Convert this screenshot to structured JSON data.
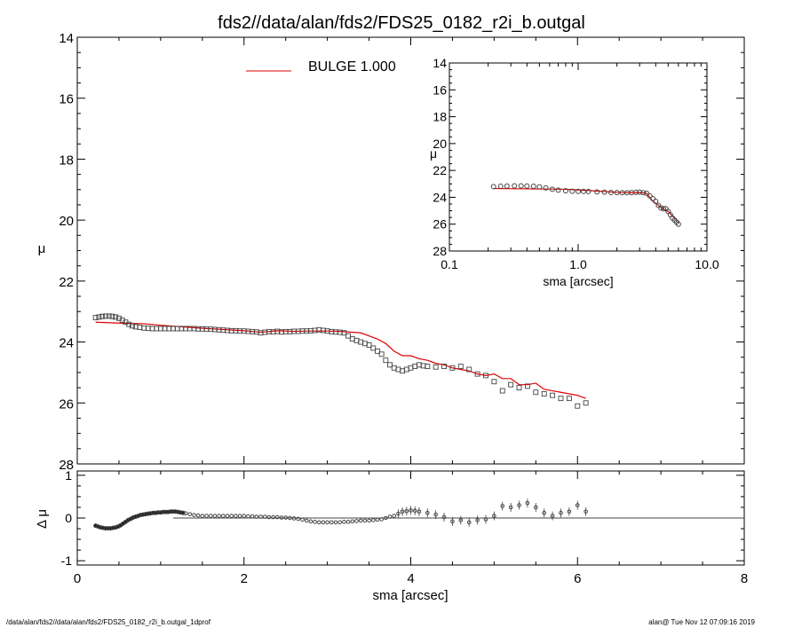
{
  "title": "fds2//data/alan/fds2/FDS25_0182_r2i_b.outgal",
  "footer_left": "/data/alan/fds2//data/alan/fds2/FDS25_0182_r2i_b.outgal_1dprof",
  "footer_right": "alan@  Tue Nov 12 07:09:16 2019",
  "colors": {
    "model": "#dd0000",
    "data": "#444444",
    "axis": "#000000"
  },
  "chart_data": [
    {
      "type": "scatter",
      "panel": "main",
      "ylabel": "μ",
      "xlim": [
        0,
        8
      ],
      "ylim": [
        28,
        14
      ],
      "y_inverted": true,
      "yticks": [
        "14",
        "16",
        "18",
        "20",
        "22",
        "24",
        "26",
        "28"
      ],
      "legend": {
        "label": "BULGE  1.000",
        "placement": "top-left"
      },
      "series": [
        {
          "name": "data",
          "marker": "square",
          "x": [
            0.22,
            0.26,
            0.3,
            0.34,
            0.38,
            0.42,
            0.46,
            0.5,
            0.54,
            0.58,
            0.62,
            0.66,
            0.7,
            0.75,
            0.8,
            0.85,
            0.9,
            0.95,
            1.0,
            1.05,
            1.1,
            1.15,
            1.2,
            1.25,
            1.3,
            1.35,
            1.4,
            1.45,
            1.5,
            1.55,
            1.6,
            1.65,
            1.7,
            1.75,
            1.8,
            1.85,
            1.9,
            1.95,
            2.0,
            2.05,
            2.1,
            2.15,
            2.2,
            2.25,
            2.3,
            2.35,
            2.4,
            2.45,
            2.5,
            2.55,
            2.6,
            2.65,
            2.7,
            2.75,
            2.8,
            2.85,
            2.9,
            2.95,
            3.0,
            3.05,
            3.1,
            3.15,
            3.2,
            3.25,
            3.3,
            3.35,
            3.4,
            3.45,
            3.5,
            3.55,
            3.6,
            3.65,
            3.7,
            3.75,
            3.8,
            3.85,
            3.9,
            3.95,
            4.0,
            4.05,
            4.1,
            4.15,
            4.2,
            4.3,
            4.4,
            4.5,
            4.6,
            4.7,
            4.8,
            4.9,
            5.0,
            5.1,
            5.2,
            5.3,
            5.4,
            5.5,
            5.6,
            5.7,
            5.8,
            5.9,
            6.0,
            6.1
          ],
          "y": [
            23.2,
            23.18,
            23.16,
            23.15,
            23.15,
            23.16,
            23.18,
            23.22,
            23.28,
            23.35,
            23.42,
            23.47,
            23.5,
            23.52,
            23.54,
            23.55,
            23.56,
            23.56,
            23.56,
            23.56,
            23.56,
            23.56,
            23.56,
            23.56,
            23.56,
            23.56,
            23.56,
            23.57,
            23.57,
            23.58,
            23.58,
            23.59,
            23.6,
            23.61,
            23.62,
            23.63,
            23.63,
            23.64,
            23.64,
            23.65,
            23.66,
            23.67,
            23.7,
            23.68,
            23.66,
            23.67,
            23.65,
            23.67,
            23.66,
            23.66,
            23.65,
            23.65,
            23.64,
            23.64,
            23.63,
            23.62,
            23.6,
            23.62,
            23.64,
            23.66,
            23.67,
            23.68,
            23.7,
            23.8,
            23.9,
            23.95,
            24.0,
            24.05,
            24.1,
            24.2,
            24.3,
            24.4,
            24.6,
            24.75,
            24.85,
            24.9,
            24.95,
            24.9,
            24.85,
            24.8,
            24.75,
            24.78,
            24.8,
            24.82,
            24.8,
            24.85,
            24.8,
            24.9,
            25.05,
            25.1,
            25.3,
            25.6,
            25.4,
            25.5,
            25.45,
            25.65,
            25.7,
            25.75,
            25.85,
            25.85,
            26.1,
            26.0
          ]
        },
        {
          "name": "BULGE  1.000",
          "line": true,
          "x": [
            0.22,
            0.5,
            0.8,
            1.0,
            1.5,
            2.0,
            2.2,
            2.4,
            2.6,
            2.8,
            3.0,
            3.2,
            3.4,
            3.6,
            3.7,
            3.8,
            3.9,
            4.0,
            4.1,
            4.2,
            4.3,
            4.4,
            4.5,
            4.6,
            4.7,
            4.8,
            4.9,
            5.0,
            5.1,
            5.2,
            5.3,
            5.4,
            5.5,
            5.6,
            5.7,
            5.8,
            5.9,
            6.0,
            6.1
          ],
          "y": [
            23.35,
            23.38,
            23.4,
            23.45,
            23.55,
            23.63,
            23.68,
            23.63,
            23.65,
            23.64,
            23.64,
            23.66,
            23.7,
            23.9,
            24.05,
            24.3,
            24.45,
            24.45,
            24.55,
            24.6,
            24.7,
            24.75,
            24.85,
            24.9,
            24.95,
            25.05,
            25.1,
            25.05,
            25.2,
            25.2,
            25.4,
            25.4,
            25.35,
            25.55,
            25.6,
            25.65,
            25.7,
            25.75,
            25.85
          ]
        }
      ]
    },
    {
      "type": "scatter",
      "panel": "inset",
      "ylabel": "μ",
      "xlabel": "sma [arcsec]",
      "x_scale": "log",
      "xlim": [
        0.1,
        10.0
      ],
      "xticks": [
        "0.1",
        "1.0",
        "10.0"
      ],
      "ylim": [
        28,
        14
      ],
      "y_inverted": true,
      "yticks": [
        "14",
        "16",
        "18",
        "20",
        "22",
        "24",
        "26",
        "28"
      ],
      "series": [
        {
          "name": "data",
          "marker": "circle",
          "x": [
            0.22,
            0.25,
            0.28,
            0.32,
            0.36,
            0.4,
            0.45,
            0.5,
            0.56,
            0.63,
            0.7,
            0.8,
            0.9,
            1.0,
            1.1,
            1.2,
            1.4,
            1.6,
            1.8,
            2.0,
            2.2,
            2.4,
            2.6,
            2.8,
            3.0,
            3.2,
            3.4,
            3.6,
            3.8,
            4.0,
            4.2,
            4.4,
            4.6,
            4.8,
            5.0,
            5.2,
            5.4,
            5.6,
            5.8,
            6.0
          ],
          "y": [
            23.2,
            23.18,
            23.16,
            23.15,
            23.15,
            23.16,
            23.18,
            23.22,
            23.3,
            23.4,
            23.47,
            23.52,
            23.55,
            23.56,
            23.56,
            23.57,
            23.6,
            23.62,
            23.64,
            23.65,
            23.66,
            23.66,
            23.65,
            23.63,
            23.62,
            23.66,
            23.7,
            23.9,
            24.1,
            24.3,
            24.6,
            24.8,
            24.85,
            24.85,
            25.05,
            25.3,
            25.55,
            25.7,
            25.85,
            26.0
          ]
        },
        {
          "name": "model",
          "line": true,
          "x": [
            0.22,
            0.5,
            0.8,
            1.0,
            1.5,
            2.0,
            2.5,
            3.0,
            3.4,
            3.8,
            4.2,
            4.6,
            5.0,
            5.4,
            5.8,
            6.1
          ],
          "y": [
            23.35,
            23.38,
            23.4,
            23.45,
            23.55,
            23.63,
            23.65,
            23.64,
            23.7,
            24.3,
            24.6,
            24.9,
            25.05,
            25.4,
            25.65,
            25.85
          ]
        }
      ]
    },
    {
      "type": "scatter",
      "panel": "residual",
      "ylabel": "Δ μ",
      "xlabel": "sma [arcsec]",
      "xlim": [
        0,
        8
      ],
      "xticks": [
        "0",
        "2",
        "4",
        "6",
        "8"
      ],
      "ylim": [
        -1.1,
        1.1
      ],
      "yticks": [
        "1",
        "0",
        "-1"
      ],
      "series": [
        {
          "name": "residual",
          "marker": "circle",
          "x": [
            0.22,
            0.25,
            0.28,
            0.31,
            0.34,
            0.37,
            0.4,
            0.43,
            0.46,
            0.49,
            0.52,
            0.55,
            0.58,
            0.61,
            0.64,
            0.67,
            0.7,
            0.73,
            0.76,
            0.79,
            0.82,
            0.85,
            0.88,
            0.91,
            0.94,
            0.97,
            1.0,
            1.03,
            1.06,
            1.09,
            1.12,
            1.15,
            1.18,
            1.21,
            1.24,
            1.27,
            1.3,
            1.35,
            1.4,
            1.45,
            1.5,
            1.55,
            1.6,
            1.65,
            1.7,
            1.75,
            1.8,
            1.85,
            1.9,
            1.95,
            2.0,
            2.05,
            2.1,
            2.15,
            2.2,
            2.25,
            2.3,
            2.35,
            2.4,
            2.45,
            2.5,
            2.55,
            2.6,
            2.65,
            2.7,
            2.75,
            2.8,
            2.85,
            2.9,
            2.95,
            3.0,
            3.05,
            3.1,
            3.15,
            3.2,
            3.25,
            3.3,
            3.35,
            3.4,
            3.45,
            3.5,
            3.55,
            3.6,
            3.65,
            3.7,
            3.75,
            3.8,
            3.85,
            3.9,
            3.95,
            4.0,
            4.05,
            4.1,
            4.2,
            4.3,
            4.4,
            4.5,
            4.6,
            4.7,
            4.8,
            4.9,
            5.0,
            5.1,
            5.2,
            5.3,
            5.4,
            5.5,
            5.6,
            5.7,
            5.8,
            5.9,
            6.0,
            6.1
          ],
          "y": [
            -0.18,
            -0.2,
            -0.22,
            -0.23,
            -0.24,
            -0.24,
            -0.24,
            -0.23,
            -0.22,
            -0.2,
            -0.17,
            -0.13,
            -0.09,
            -0.05,
            -0.02,
            0.01,
            0.03,
            0.05,
            0.07,
            0.08,
            0.09,
            0.1,
            0.11,
            0.12,
            0.12,
            0.13,
            0.13,
            0.14,
            0.14,
            0.14,
            0.15,
            0.15,
            0.15,
            0.14,
            0.13,
            0.12,
            0.11,
            0.09,
            0.07,
            0.06,
            0.05,
            0.05,
            0.05,
            0.05,
            0.05,
            0.05,
            0.05,
            0.05,
            0.05,
            0.05,
            0.05,
            0.04,
            0.04,
            0.03,
            0.03,
            0.03,
            0.02,
            0.02,
            0.02,
            0.01,
            0.01,
            0.0,
            -0.01,
            -0.02,
            -0.04,
            -0.06,
            -0.08,
            -0.09,
            -0.1,
            -0.1,
            -0.1,
            -0.1,
            -0.1,
            -0.1,
            -0.09,
            -0.09,
            -0.08,
            -0.07,
            -0.06,
            -0.06,
            -0.06,
            -0.05,
            -0.04,
            -0.03,
            0.0,
            0.03,
            0.05,
            0.1,
            0.15,
            0.16,
            0.18,
            0.17,
            0.15,
            0.12,
            0.08,
            0.02,
            -0.08,
            -0.05,
            -0.1,
            -0.05,
            -0.03,
            0.05,
            0.28,
            0.25,
            0.3,
            0.35,
            0.25,
            0.12,
            0.05,
            0.12,
            0.15,
            0.3,
            0.15
          ]
        },
        {
          "name": "zero",
          "line": true,
          "x": [
            1.15,
            8.0
          ],
          "y": [
            0,
            0
          ]
        }
      ]
    }
  ]
}
